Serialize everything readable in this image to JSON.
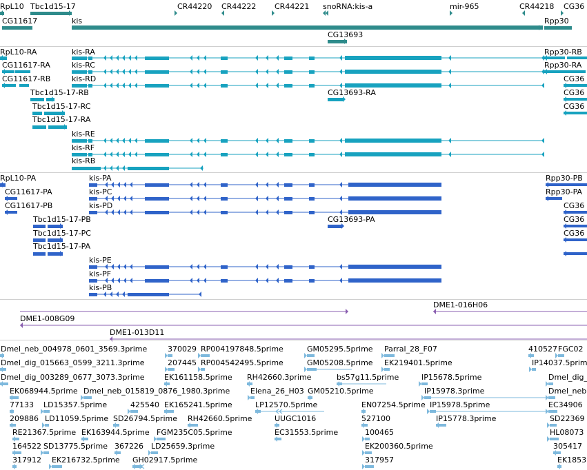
{
  "colors": {
    "gene": "#2e8b8b",
    "transcript": "#17a2bf",
    "protein": "#2f63c9",
    "bac": "#8a5fb0",
    "est": "#7eb9dd",
    "separator": "#cfcfcf"
  },
  "genes": [
    {
      "label": "RpL10"
    },
    {
      "label": "Tbc1d15-17"
    },
    {
      "label": "CR44220"
    },
    {
      "label": "CR44222"
    },
    {
      "label": "CR44221"
    },
    {
      "label": "snoRNA:kis-a"
    },
    {
      "label": "mir-965"
    },
    {
      "label": "CR44218"
    },
    {
      "label": "CG36"
    },
    {
      "label": "CG11617"
    },
    {
      "label": "kis"
    },
    {
      "label": "Rpp30"
    },
    {
      "label": "CG13693"
    }
  ],
  "transcripts": [
    {
      "label": "RpL10-RA"
    },
    {
      "label": "kis-RA"
    },
    {
      "label": "Rpp30-RB"
    },
    {
      "label": "CG11617-RA"
    },
    {
      "label": "kis-RC"
    },
    {
      "label": "Rpp30-RA"
    },
    {
      "label": "CG11617-RB"
    },
    {
      "label": "kis-RD"
    },
    {
      "label": "CG36"
    },
    {
      "label": "Tbc1d15-17-RB"
    },
    {
      "label": "CG13693-RA"
    },
    {
      "label": "CG36"
    },
    {
      "label": "Tbc1d15-17-RC"
    },
    {
      "label": "CG36"
    },
    {
      "label": "Tbc1d15-17-RA"
    },
    {
      "label": "kis-RE"
    },
    {
      "label": "kis-RF"
    },
    {
      "label": "kis-RB"
    }
  ],
  "proteins": [
    {
      "label": "RpL10-PA"
    },
    {
      "label": "kis-PA"
    },
    {
      "label": "Rpp30-PB"
    },
    {
      "label": "CG11617-PA"
    },
    {
      "label": "kis-PC"
    },
    {
      "label": "Rpp30-PA"
    },
    {
      "label": "CG11617-PB"
    },
    {
      "label": "kis-PD"
    },
    {
      "label": "CG36"
    },
    {
      "label": "Tbc1d15-17-PB"
    },
    {
      "label": "CG13693-PA"
    },
    {
      "label": "CG36"
    },
    {
      "label": "Tbc1d15-17-PC"
    },
    {
      "label": "CG36"
    },
    {
      "label": "Tbc1d15-17-PA"
    },
    {
      "label": "kis-PE"
    },
    {
      "label": "kis-PF"
    },
    {
      "label": "kis-PB"
    }
  ],
  "bacs": [
    {
      "label": "DME1-016H06"
    },
    {
      "label": "DME1-008G09"
    },
    {
      "label": "DME1-013D11"
    }
  ],
  "ests": [
    {
      "label": "Dmel_neb_004978_0601_3569.3prime"
    },
    {
      "label": "370029"
    },
    {
      "label": "RP004197848.5prime"
    },
    {
      "label": "GM05295.5prime"
    },
    {
      "label": "Parral_28_F07"
    },
    {
      "label": "410527"
    },
    {
      "label": "FGC02"
    },
    {
      "label": "Dmel_dig_015663_0599_3211.3prime"
    },
    {
      "label": "207445"
    },
    {
      "label": "RP004542495.5prime"
    },
    {
      "label": "GM05208.5prime"
    },
    {
      "label": "EK219401.5prime"
    },
    {
      "label": "IP14037.5prime"
    },
    {
      "label": "Dmel_dig_003289_0677_3073.3prime"
    },
    {
      "label": "EK161158.5prime"
    },
    {
      "label": "RH42660.3prime"
    },
    {
      "label": "bs57g11.5prime"
    },
    {
      "label": "IP15678.5prime"
    },
    {
      "label": "Dmel_dig_"
    },
    {
      "label": "EK068944.5prime"
    },
    {
      "label": "Dmel_neb_015819_0876_1980.3prime"
    },
    {
      "label": "Elena_26_H03"
    },
    {
      "label": "GM05210.5prime"
    },
    {
      "label": "IP15978.3prime"
    },
    {
      "label": "Dmel_neb"
    },
    {
      "label": "77133"
    },
    {
      "label": "LD15357.5prime"
    },
    {
      "label": "425540"
    },
    {
      "label": "EK165241.5prime"
    },
    {
      "label": "LP12570.5prime"
    },
    {
      "label": "EN07254.5prime"
    },
    {
      "label": "IP15978.5prime"
    },
    {
      "label": "EC34906"
    },
    {
      "label": "209886"
    },
    {
      "label": "LD11059.5prime"
    },
    {
      "label": "SD26794.5prime"
    },
    {
      "label": "RH42660.5prime"
    },
    {
      "label": "UUGC1016"
    },
    {
      "label": "527100"
    },
    {
      "label": "IP15778.3prime"
    },
    {
      "label": "SD22369"
    },
    {
      "label": "RE21367.5prime"
    },
    {
      "label": "EK163944.5prime"
    },
    {
      "label": "FGM235C05.5prime"
    },
    {
      "label": "EC31553.5prime"
    },
    {
      "label": "100465"
    },
    {
      "label": "HL08073"
    },
    {
      "label": "164522"
    },
    {
      "label": "SD13775.5prime"
    },
    {
      "label": "367226"
    },
    {
      "label": "LD25659.3prime"
    },
    {
      "label": "EK200360.5prime"
    },
    {
      "label": "305417"
    },
    {
      "label": "317912"
    },
    {
      "label": "EK216732.5prime"
    },
    {
      "label": "GH02917.5prime"
    },
    {
      "label": "317957"
    },
    {
      "label": "EK1853"
    }
  ]
}
